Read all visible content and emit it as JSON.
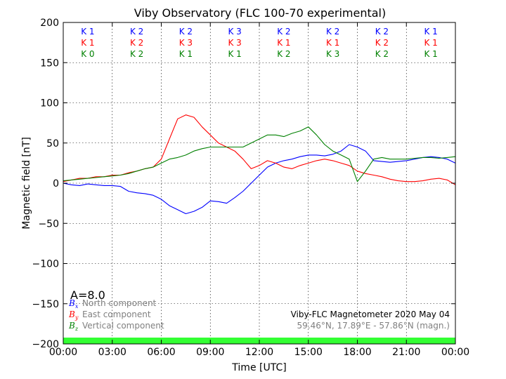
{
  "chart_data": {
    "type": "line",
    "title": "Viby Observatory (FLC 100-70 experimental)",
    "xlabel": "Time [UTC]",
    "ylabel": "Magnetic field [nT]",
    "xlim": [
      0,
      24
    ],
    "ylim": [
      -200,
      200
    ],
    "grid": true,
    "x_ticks": [
      "00:00",
      "03:00",
      "06:00",
      "09:00",
      "12:00",
      "15:00",
      "18:00",
      "21:00",
      "00:00"
    ],
    "y_ticks": [
      "200",
      "150",
      "100",
      "50",
      "0",
      "−50",
      "−100",
      "−150",
      "−200"
    ],
    "x": [
      0,
      0.5,
      1,
      1.5,
      2,
      2.5,
      3,
      3.5,
      4,
      4.5,
      5,
      5.5,
      6,
      6.5,
      7,
      7.5,
      8,
      8.5,
      9,
      9.5,
      10,
      10.5,
      11,
      11.5,
      12,
      12.5,
      13,
      13.5,
      14,
      14.5,
      15,
      15.5,
      16,
      16.5,
      17,
      17.5,
      18,
      18.5,
      19,
      19.5,
      20,
      20.5,
      21,
      21.5,
      22,
      22.5,
      23,
      23.5,
      24
    ],
    "series": [
      {
        "name": "North component",
        "symbol": "Bx",
        "color": "#0000ff",
        "values": [
          0,
          -2,
          -3,
          -1,
          -2,
          -3,
          -3,
          -4,
          -10,
          -12,
          -13,
          -15,
          -20,
          -28,
          -33,
          -38,
          -35,
          -30,
          -22,
          -23,
          -25,
          -18,
          -10,
          0,
          10,
          20,
          25,
          28,
          30,
          33,
          35,
          35,
          34,
          36,
          40,
          48,
          45,
          40,
          28,
          27,
          26,
          27,
          28,
          30,
          32,
          33,
          32,
          30,
          25
        ]
      },
      {
        "name": "East component",
        "symbol": "By",
        "color": "#ff0000",
        "values": [
          2,
          4,
          6,
          6,
          8,
          8,
          10,
          10,
          13,
          15,
          18,
          20,
          30,
          55,
          80,
          85,
          82,
          70,
          60,
          50,
          45,
          40,
          30,
          18,
          22,
          28,
          25,
          20,
          18,
          22,
          25,
          28,
          30,
          28,
          25,
          22,
          15,
          12,
          10,
          8,
          5,
          3,
          2,
          2,
          3,
          5,
          6,
          4,
          -2
        ]
      },
      {
        "name": "Vertical component",
        "symbol": "Bz",
        "color": "#008000",
        "values": [
          3,
          4,
          5,
          6,
          7,
          8,
          9,
          10,
          12,
          15,
          18,
          20,
          25,
          30,
          32,
          35,
          40,
          43,
          45,
          45,
          45,
          45,
          45,
          50,
          55,
          60,
          60,
          58,
          62,
          65,
          70,
          60,
          48,
          40,
          35,
          30,
          2,
          15,
          30,
          32,
          30,
          30,
          30,
          31,
          32,
          32,
          31,
          32,
          33
        ]
      }
    ],
    "k_index": {
      "rows": [
        {
          "color": "#0000ff",
          "values": [
            "K 1",
            "K 2",
            "K 2",
            "K 3",
            "K 2",
            "K 2",
            "K 2",
            "K 1"
          ]
        },
        {
          "color": "#ff0000",
          "values": [
            "K 1",
            "K 2",
            "K 3",
            "K 3",
            "K 1",
            "K 1",
            "K 2",
            "K 1"
          ]
        },
        {
          "color": "#008000",
          "values": [
            "K 0",
            "K 2",
            "K 1",
            "K 1",
            "K 2",
            "K 3",
            "K 2",
            "K 1"
          ]
        }
      ]
    },
    "a_index": "A=8.0",
    "status_bar_color": "#33ff33",
    "annotations": {
      "instrument": "Viby-FLC Magnetometer 2020 May 04",
      "coordinates": "59.46°N, 17.89°E - 57.86°N (magn.)"
    },
    "legend": [
      {
        "symbol_base": "B",
        "symbol_sub": "x",
        "label": "North component",
        "color": "#0000ff"
      },
      {
        "symbol_base": "B",
        "symbol_sub": "y",
        "label": "East component",
        "color": "#ff0000"
      },
      {
        "symbol_base": "B",
        "symbol_sub": "z",
        "label": "Vertical component",
        "color": "#008000"
      }
    ],
    "legend_placement": "lower-left",
    "label_color": "#808080"
  }
}
